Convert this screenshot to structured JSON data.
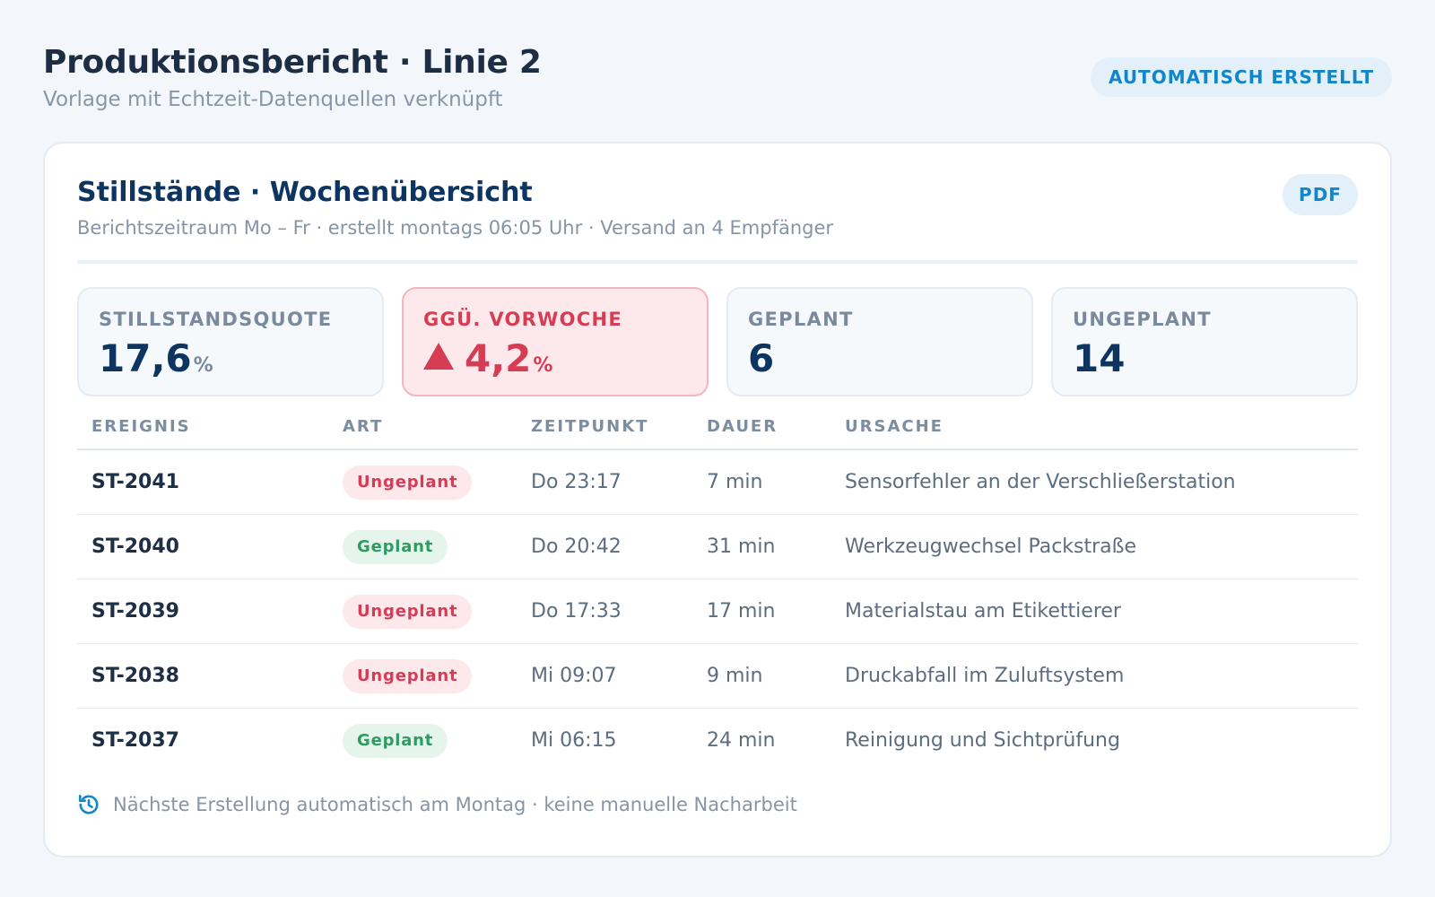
{
  "header": {
    "title": "Produktionsbericht · Linie 2",
    "subtitle": "Vorlage mit Echtzeit-Datenquellen verknüpft",
    "badge": "AUTOMATISCH ERSTELLT"
  },
  "card": {
    "title": "Stillstände · Wochenübersicht",
    "subtitle": "Berichtszeitraum Mo – Fr · erstellt montags 06:05 Uhr · Versand an 4 Empfänger",
    "pdf_label": "PDF"
  },
  "kpis": [
    {
      "label": "STILLSTANDSQUOTE",
      "value": "17,6",
      "unit": "%"
    },
    {
      "label": "GGÜ. VORWOCHE",
      "value": "4,2",
      "unit": "%",
      "trend_icon": "arrow-up-icon"
    },
    {
      "label": "GEPLANT",
      "value": "6"
    },
    {
      "label": "UNGEPLANT",
      "value": "14"
    }
  ],
  "table": {
    "columns": [
      "EREIGNIS",
      "ART",
      "ZEITPUNKT",
      "DAUER",
      "URSACHE"
    ],
    "rows": [
      {
        "id": "ST-2041",
        "type": "Ungeplant",
        "time": "Do 23:17",
        "duration": "7 min",
        "cause": "Sensorfehler an der Verschließerstation"
      },
      {
        "id": "ST-2040",
        "type": "Geplant",
        "time": "Do 20:42",
        "duration": "31 min",
        "cause": "Werkzeugwechsel Packstraße"
      },
      {
        "id": "ST-2039",
        "type": "Ungeplant",
        "time": "Do 17:33",
        "duration": "17 min",
        "cause": "Materialstau am Etikettierer"
      },
      {
        "id": "ST-2038",
        "type": "Ungeplant",
        "time": "Mi 09:07",
        "duration": "9 min",
        "cause": "Druckabfall im Zuluftsystem"
      },
      {
        "id": "ST-2037",
        "type": "Geplant",
        "time": "Mi 06:15",
        "duration": "24 min",
        "cause": "Reinigung und Sichtprüfung"
      }
    ]
  },
  "footer": {
    "icon": "history-icon",
    "text": "Nächste Erstellung automatisch am Montag · keine manuelle Nacharbeit"
  },
  "colors": {
    "accent": "#1186c9",
    "navy": "#0e3560",
    "alert": "#d63d55",
    "success": "#2f9b63"
  }
}
